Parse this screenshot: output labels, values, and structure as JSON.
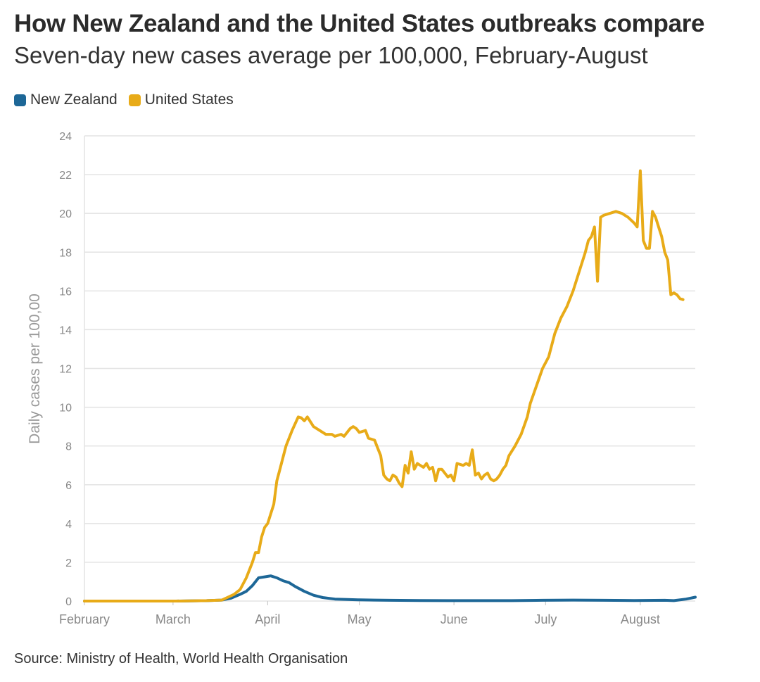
{
  "chart_data": {
    "type": "line",
    "title": "How New Zealand and the United States outbreaks compare",
    "subtitle": "Seven-day new cases average per 100,000, February-August",
    "xlabel": "",
    "ylabel": "Daily cases per 100,00",
    "ylim": [
      0,
      24
    ],
    "yticks": [
      0,
      2,
      4,
      6,
      8,
      10,
      12,
      14,
      16,
      18,
      20,
      22,
      24
    ],
    "xlim": [
      0,
      200
    ],
    "xticks": [
      {
        "label": "February",
        "x": 0
      },
      {
        "label": "March",
        "x": 29
      },
      {
        "label": "April",
        "x": 60
      },
      {
        "label": "May",
        "x": 90
      },
      {
        "label": "June",
        "x": 121
      },
      {
        "label": "July",
        "x": 151
      },
      {
        "label": "August",
        "x": 182
      }
    ],
    "grid": true,
    "legend_position": "top-left",
    "series": [
      {
        "name": "New Zealand",
        "color": "#1d6797",
        "points": [
          [
            0,
            0
          ],
          [
            30,
            0
          ],
          [
            40,
            0.02
          ],
          [
            45,
            0.05
          ],
          [
            48,
            0.15
          ],
          [
            51,
            0.35
          ],
          [
            53,
            0.5
          ],
          [
            55,
            0.8
          ],
          [
            57,
            1.2
          ],
          [
            59,
            1.25
          ],
          [
            61,
            1.3
          ],
          [
            63,
            1.2
          ],
          [
            65,
            1.05
          ],
          [
            67,
            0.95
          ],
          [
            69,
            0.75
          ],
          [
            72,
            0.5
          ],
          [
            75,
            0.3
          ],
          [
            78,
            0.18
          ],
          [
            82,
            0.1
          ],
          [
            86,
            0.08
          ],
          [
            90,
            0.06
          ],
          [
            95,
            0.05
          ],
          [
            100,
            0.04
          ],
          [
            110,
            0.03
          ],
          [
            120,
            0.02
          ],
          [
            130,
            0.02
          ],
          [
            140,
            0.02
          ],
          [
            150,
            0.04
          ],
          [
            160,
            0.05
          ],
          [
            170,
            0.04
          ],
          [
            180,
            0.03
          ],
          [
            190,
            0.04
          ],
          [
            193,
            0.02
          ],
          [
            197,
            0.1
          ],
          [
            200,
            0.2
          ]
        ]
      },
      {
        "name": "United States",
        "color": "#e8ab18",
        "points": [
          [
            0,
            0
          ],
          [
            30,
            0
          ],
          [
            40,
            0.02
          ],
          [
            45,
            0.05
          ],
          [
            47,
            0.2
          ],
          [
            49,
            0.35
          ],
          [
            51,
            0.6
          ],
          [
            53,
            1.2
          ],
          [
            55,
            2.0
          ],
          [
            56,
            2.5
          ],
          [
            57,
            2.5
          ],
          [
            58,
            3.3
          ],
          [
            59,
            3.8
          ],
          [
            60,
            4.0
          ],
          [
            62,
            5.0
          ],
          [
            63,
            6.2
          ],
          [
            64,
            6.8
          ],
          [
            66,
            8.0
          ],
          [
            68,
            8.8
          ],
          [
            70,
            9.5
          ],
          [
            71,
            9.45
          ],
          [
            72,
            9.3
          ],
          [
            73,
            9.5
          ],
          [
            75,
            9.0
          ],
          [
            77,
            8.8
          ],
          [
            79,
            8.6
          ],
          [
            81,
            8.6
          ],
          [
            82,
            8.5
          ],
          [
            84,
            8.6
          ],
          [
            85,
            8.5
          ],
          [
            87,
            8.9
          ],
          [
            88,
            9.0
          ],
          [
            89,
            8.9
          ],
          [
            90,
            8.7
          ],
          [
            92,
            8.8
          ],
          [
            93,
            8.4
          ],
          [
            95,
            8.3
          ],
          [
            96,
            7.9
          ],
          [
            97,
            7.5
          ],
          [
            98,
            6.5
          ],
          [
            99,
            6.3
          ],
          [
            100,
            6.2
          ],
          [
            101,
            6.5
          ],
          [
            102,
            6.4
          ],
          [
            103,
            6.1
          ],
          [
            104,
            5.9
          ],
          [
            105,
            7.0
          ],
          [
            106,
            6.6
          ],
          [
            107,
            7.7
          ],
          [
            108,
            6.8
          ],
          [
            109,
            7.1
          ],
          [
            111,
            6.9
          ],
          [
            112,
            7.1
          ],
          [
            113,
            6.8
          ],
          [
            114,
            6.9
          ],
          [
            115,
            6.2
          ],
          [
            116,
            6.8
          ],
          [
            117,
            6.8
          ],
          [
            118,
            6.6
          ],
          [
            119,
            6.4
          ],
          [
            120,
            6.5
          ],
          [
            121,
            6.2
          ],
          [
            122,
            7.1
          ],
          [
            124,
            7.0
          ],
          [
            125,
            7.1
          ],
          [
            126,
            7.0
          ],
          [
            127,
            7.8
          ],
          [
            128,
            6.5
          ],
          [
            129,
            6.6
          ],
          [
            130,
            6.3
          ],
          [
            131,
            6.5
          ],
          [
            132,
            6.6
          ],
          [
            133,
            6.3
          ],
          [
            134,
            6.2
          ],
          [
            135,
            6.3
          ],
          [
            136,
            6.5
          ],
          [
            137,
            6.8
          ],
          [
            138,
            7.0
          ],
          [
            139,
            7.5
          ],
          [
            141,
            8.0
          ],
          [
            143,
            8.6
          ],
          [
            145,
            9.5
          ],
          [
            146,
            10.2
          ],
          [
            148,
            11.1
          ],
          [
            150,
            12.0
          ],
          [
            152,
            12.6
          ],
          [
            154,
            13.8
          ],
          [
            156,
            14.6
          ],
          [
            158,
            15.2
          ],
          [
            160,
            16.0
          ],
          [
            162,
            17.0
          ],
          [
            164,
            18.0
          ],
          [
            165,
            18.6
          ],
          [
            166,
            18.8
          ],
          [
            167,
            19.3
          ],
          [
            168,
            16.5
          ],
          [
            169,
            19.8
          ],
          [
            170,
            19.9
          ],
          [
            172,
            20.0
          ],
          [
            174,
            20.1
          ],
          [
            176,
            20.0
          ],
          [
            178,
            19.8
          ],
          [
            180,
            19.5
          ],
          [
            181,
            19.3
          ],
          [
            182,
            22.2
          ],
          [
            183,
            18.6
          ],
          [
            184,
            18.2
          ],
          [
            185,
            18.2
          ],
          [
            186,
            20.1
          ],
          [
            187,
            19.8
          ],
          [
            188,
            19.3
          ],
          [
            189,
            18.8
          ],
          [
            190,
            18.0
          ],
          [
            191,
            17.6
          ],
          [
            192,
            15.8
          ],
          [
            193,
            15.9
          ],
          [
            194,
            15.8
          ],
          [
            195,
            15.6
          ],
          [
            196,
            15.55
          ]
        ]
      }
    ]
  },
  "legend": {
    "items": [
      {
        "label": "New Zealand",
        "color": "#1d6797"
      },
      {
        "label": "United States",
        "color": "#e8ab18"
      }
    ]
  },
  "source": "Source: Ministry of Health, World Health Organisation"
}
